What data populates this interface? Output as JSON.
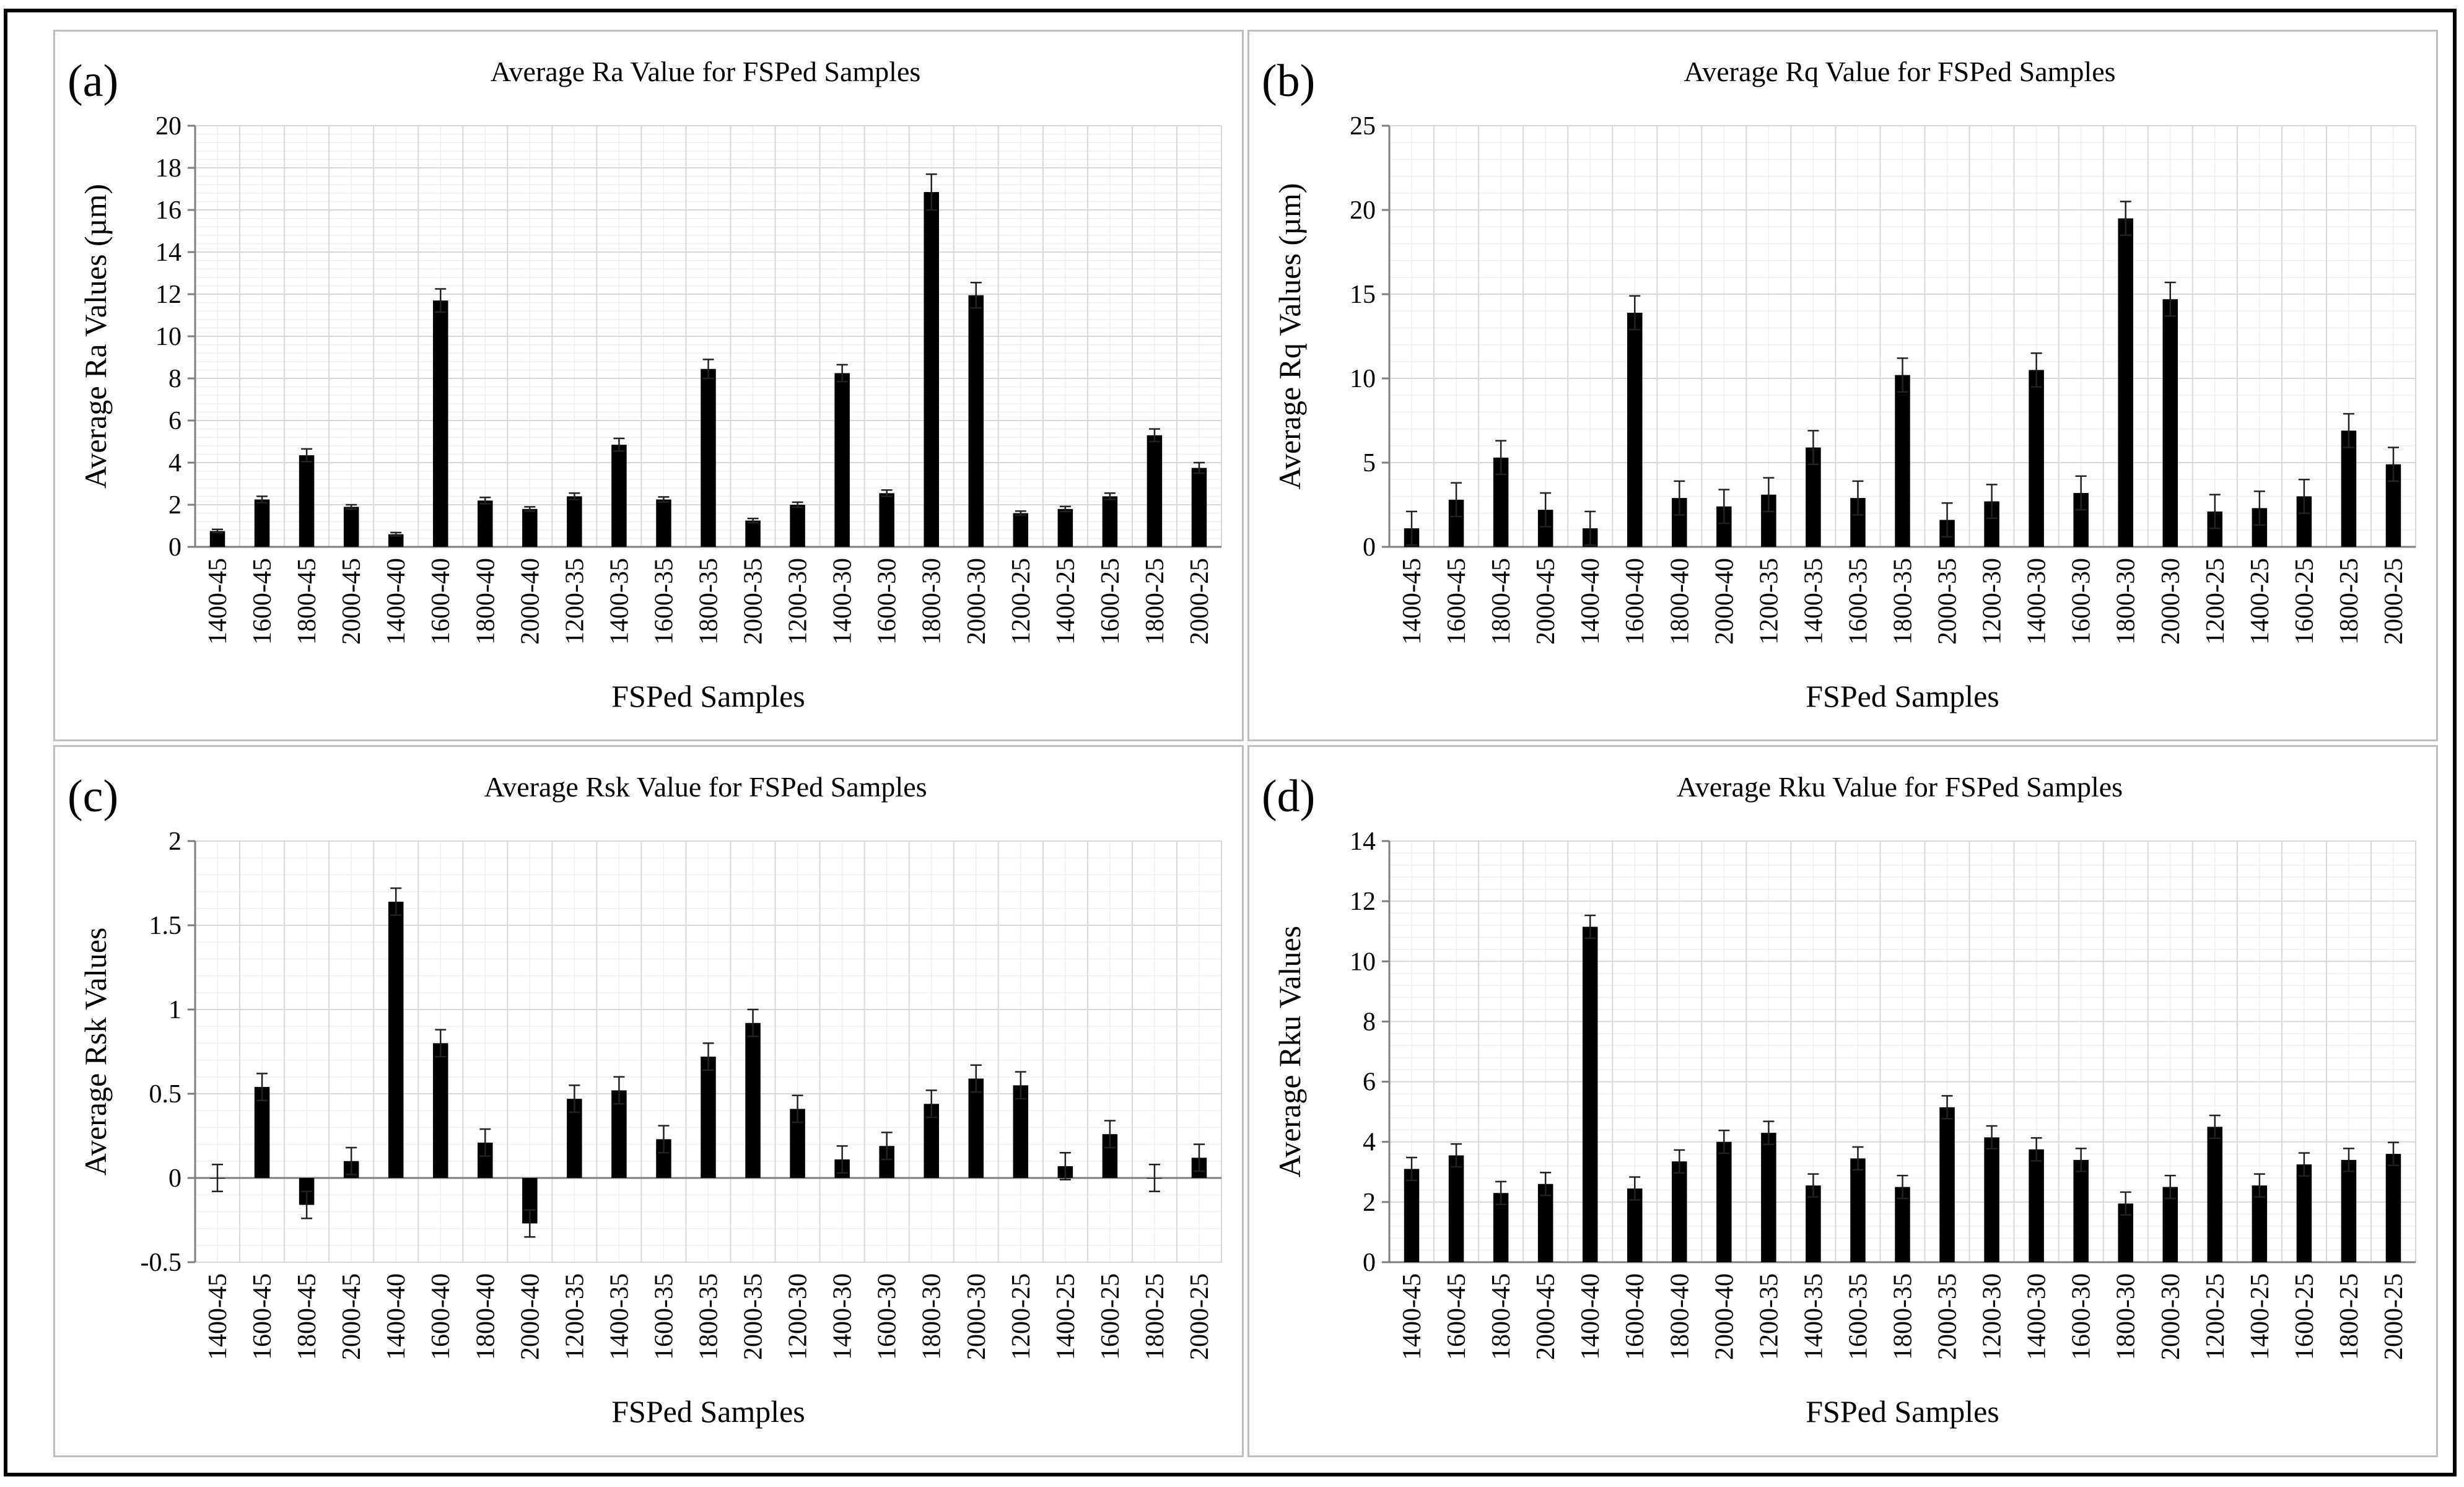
{
  "colors": {
    "bar": "#000000",
    "grid": "#d9d9d9",
    "axis": "#7f7f7f",
    "border": "#bfbfbf"
  },
  "chart_data": [
    {
      "panel_label": "(a)",
      "type": "bar",
      "title": "Average Ra Value for FSPed Samples",
      "xlabel": "FSPed Samples",
      "ylabel": "Average Ra Values (µm)",
      "ylim": [
        0,
        20
      ],
      "yticks": [
        0,
        2,
        4,
        6,
        8,
        10,
        12,
        14,
        16,
        18,
        20
      ],
      "ytick_labels": [
        "0",
        "2",
        "4",
        "6",
        "8",
        "10",
        "12",
        "14",
        "16",
        "18",
        "20"
      ],
      "categories": [
        "1400-45",
        "1600-45",
        "1800-45",
        "2000-45",
        "1400-40",
        "1600-40",
        "1800-40",
        "2000-40",
        "1200-35",
        "1400-35",
        "1600-35",
        "1800-35",
        "2000-35",
        "1200-30",
        "1400-30",
        "1600-30",
        "1800-30",
        "2000-30",
        "1200-25",
        "1400-25",
        "1600-25",
        "1800-25",
        "2000-25"
      ],
      "values": [
        0.75,
        2.25,
        4.35,
        1.9,
        0.6,
        11.7,
        2.2,
        1.8,
        2.4,
        4.85,
        2.25,
        8.45,
        1.25,
        2.0,
        8.25,
        2.55,
        16.85,
        11.95,
        1.6,
        1.8,
        2.4,
        5.3,
        3.75
      ],
      "errors": [
        0.08,
        0.15,
        0.3,
        0.1,
        0.08,
        0.55,
        0.15,
        0.1,
        0.15,
        0.3,
        0.12,
        0.45,
        0.1,
        0.12,
        0.4,
        0.15,
        0.85,
        0.6,
        0.1,
        0.12,
        0.15,
        0.3,
        0.25
      ]
    },
    {
      "panel_label": "(b)",
      "type": "bar",
      "title": "Average Rq Value for FSPed Samples",
      "xlabel": "FSPed Samples",
      "ylabel": "Average Rq Values (µm)",
      "ylim": [
        0,
        25
      ],
      "yticks": [
        0,
        5,
        10,
        15,
        20,
        25
      ],
      "ytick_labels": [
        "0",
        "5",
        "10",
        "15",
        "20",
        "25"
      ],
      "categories": [
        "1400-45",
        "1600-45",
        "1800-45",
        "2000-45",
        "1400-40",
        "1600-40",
        "1800-40",
        "2000-40",
        "1200-35",
        "1400-35",
        "1600-35",
        "1800-35",
        "2000-35",
        "1200-30",
        "1400-30",
        "1600-30",
        "1800-30",
        "2000-30",
        "1200-25",
        "1400-25",
        "1600-25",
        "1800-25",
        "2000-25"
      ],
      "values": [
        1.1,
        2.8,
        5.3,
        2.2,
        1.1,
        13.9,
        2.9,
        2.4,
        3.1,
        5.9,
        2.9,
        10.2,
        1.6,
        2.7,
        10.5,
        3.2,
        19.5,
        14.7,
        2.1,
        2.3,
        3.0,
        6.9,
        4.9
      ],
      "errors": [
        1.0,
        1.0,
        1.0,
        1.0,
        1.0,
        1.0,
        1.0,
        1.0,
        1.0,
        1.0,
        1.0,
        1.0,
        1.0,
        1.0,
        1.0,
        1.0,
        1.0,
        1.0,
        1.0,
        1.0,
        1.0,
        1.0,
        1.0
      ]
    },
    {
      "panel_label": "(c)",
      "type": "bar",
      "title": "Average Rsk Value for FSPed Samples",
      "xlabel": "FSPed Samples",
      "ylabel": "Average Rsk Values",
      "ylim": [
        -0.5,
        2
      ],
      "yticks": [
        -0.5,
        0,
        0.5,
        1,
        1.5,
        2
      ],
      "ytick_labels": [
        "-0.5",
        "0",
        "0.5",
        "1",
        "1.5",
        "2"
      ],
      "categories": [
        "1400-45",
        "1600-45",
        "1800-45",
        "2000-45",
        "1400-40",
        "1600-40",
        "1800-40",
        "2000-40",
        "1200-35",
        "1400-35",
        "1600-35",
        "1800-35",
        "2000-35",
        "1200-30",
        "1400-30",
        "1600-30",
        "1800-30",
        "2000-30",
        "1200-25",
        "1400-25",
        "1600-25",
        "1800-25",
        "2000-25"
      ],
      "values": [
        0.0,
        0.54,
        -0.16,
        0.1,
        1.64,
        0.8,
        0.21,
        -0.27,
        0.47,
        0.52,
        0.23,
        0.72,
        0.92,
        0.41,
        0.11,
        0.19,
        0.44,
        0.59,
        0.55,
        0.07,
        0.26,
        0.0,
        0.12
      ],
      "errors": [
        0.08,
        0.08,
        0.08,
        0.08,
        0.08,
        0.08,
        0.08,
        0.08,
        0.08,
        0.08,
        0.08,
        0.08,
        0.08,
        0.08,
        0.08,
        0.08,
        0.08,
        0.08,
        0.08,
        0.08,
        0.08,
        0.08,
        0.08
      ]
    },
    {
      "panel_label": "(d)",
      "type": "bar",
      "title": "Average Rku Value for FSPed Samples",
      "xlabel": "FSPed Samples",
      "ylabel": "Average Rku Values",
      "ylim": [
        0,
        14
      ],
      "yticks": [
        0,
        2,
        4,
        6,
        8,
        10,
        12,
        14
      ],
      "ytick_labels": [
        "0",
        "2",
        "4",
        "6",
        "8",
        "10",
        "12",
        "14"
      ],
      "categories": [
        "1400-45",
        "1600-45",
        "1800-45",
        "2000-45",
        "1400-40",
        "1600-40",
        "1800-40",
        "2000-40",
        "1200-35",
        "1400-35",
        "1600-35",
        "1800-35",
        "2000-35",
        "1200-30",
        "1400-30",
        "1600-30",
        "1800-30",
        "2000-30",
        "1200-25",
        "1400-25",
        "1600-25",
        "1800-25",
        "2000-25"
      ],
      "values": [
        3.1,
        3.55,
        2.3,
        2.6,
        11.15,
        2.45,
        3.35,
        4.0,
        4.3,
        2.55,
        3.45,
        2.5,
        5.15,
        4.15,
        3.75,
        3.4,
        1.95,
        2.5,
        4.5,
        2.55,
        3.25,
        3.4,
        3.6
      ],
      "errors": [
        0.38,
        0.38,
        0.38,
        0.38,
        0.38,
        0.38,
        0.38,
        0.38,
        0.38,
        0.38,
        0.38,
        0.38,
        0.38,
        0.38,
        0.38,
        0.38,
        0.38,
        0.38,
        0.38,
        0.38,
        0.38,
        0.38,
        0.38
      ]
    }
  ]
}
